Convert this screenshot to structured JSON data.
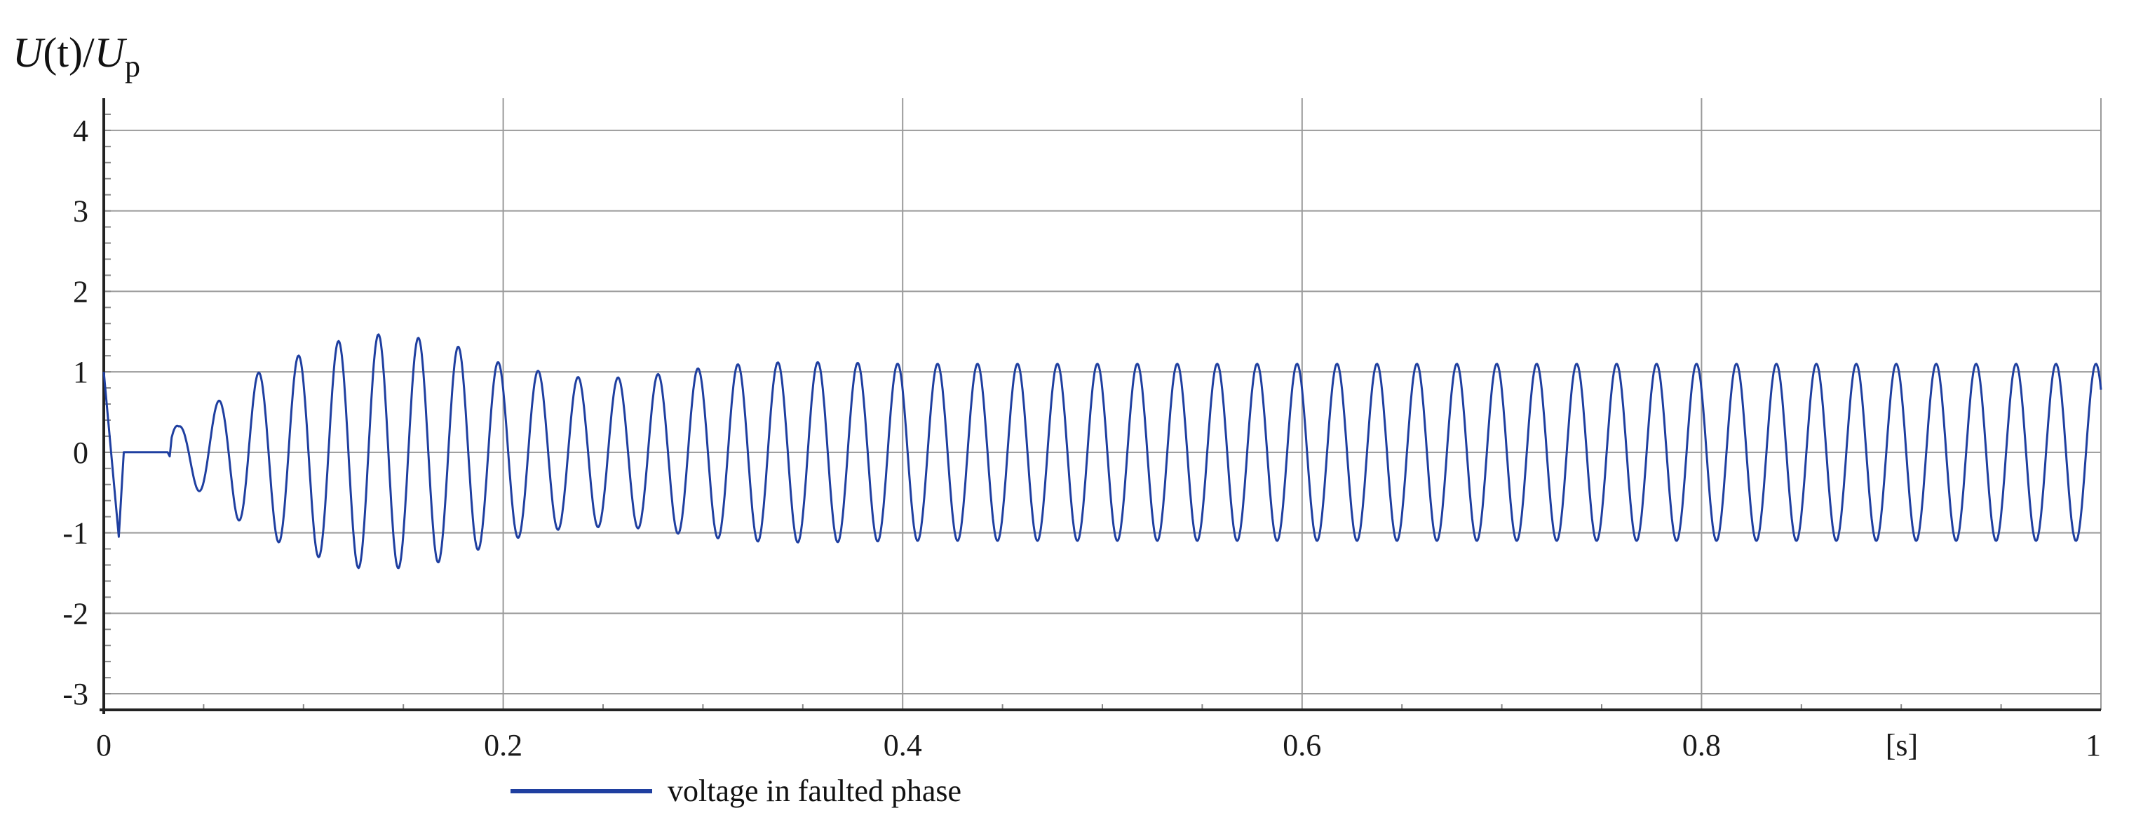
{
  "chart_data": {
    "type": "line",
    "ylabel": {
      "base": "U",
      "paren": "(t)/",
      "base2": "U",
      "sub": "p"
    },
    "xlabel_unit": "[s]",
    "xlim": [
      0,
      1
    ],
    "ylim": [
      -3.2,
      4.4
    ],
    "x_ticks": [
      0,
      0.2,
      0.4,
      0.6,
      0.8,
      1
    ],
    "x_tick_labels": [
      "0",
      "0.2",
      "0.4",
      "0.6",
      "0.8",
      "1"
    ],
    "y_ticks": [
      -3,
      -2,
      -1,
      0,
      1,
      2,
      3,
      4
    ],
    "y_tick_labels": [
      "-3",
      "-2",
      "-1",
      "0",
      "1",
      "2",
      "3",
      "4"
    ],
    "grid": true,
    "legend_position": "bottom-left",
    "series": [
      {
        "name": "voltage in faulted phase",
        "color": "#1f3fa0",
        "frequency_hz": 50,
        "envelope_peaks": [
          {
            "t": 0.0,
            "peak": 1.0
          },
          {
            "t": 0.0075,
            "peak": -1.05
          },
          {
            "t": 0.0375,
            "peak": 0.32
          },
          {
            "t": 0.0475,
            "peak": -0.48
          },
          {
            "t": 0.06,
            "peak": 0.68
          },
          {
            "t": 0.07,
            "peak": -0.9
          },
          {
            "t": 0.08,
            "peak": 1.02
          },
          {
            "t": 0.09,
            "peak": -1.15
          },
          {
            "t": 0.1,
            "peak": 1.22
          },
          {
            "t": 0.11,
            "peak": -1.33
          },
          {
            "t": 0.12,
            "peak": 1.4
          },
          {
            "t": 0.13,
            "peak": -1.45
          },
          {
            "t": 0.14,
            "peak": 1.47
          },
          {
            "t": 0.15,
            "peak": -1.43
          },
          {
            "t": 0.16,
            "peak": 1.42
          },
          {
            "t": 0.17,
            "peak": -1.35
          },
          {
            "t": 0.18,
            "peak": 1.3
          },
          {
            "t": 0.19,
            "peak": -1.18
          },
          {
            "t": 0.2,
            "peak": 1.1
          },
          {
            "t": 0.21,
            "peak": -1.05
          },
          {
            "t": 0.22,
            "peak": 1.0
          },
          {
            "t": 0.23,
            "peak": -0.95
          },
          {
            "t": 0.24,
            "peak": 0.93
          },
          {
            "t": 0.25,
            "peak": -0.93
          },
          {
            "t": 0.26,
            "peak": 0.93
          },
          {
            "t": 0.27,
            "peak": -0.95
          },
          {
            "t": 0.28,
            "peak": 0.98
          },
          {
            "t": 0.29,
            "peak": -1.02
          },
          {
            "t": 0.3,
            "peak": 1.05
          },
          {
            "t": 0.32,
            "peak": 1.1
          },
          {
            "t": 0.34,
            "peak": 1.12
          },
          {
            "t": 0.36,
            "peak": 1.12
          },
          {
            "t": 0.4,
            "peak": 1.1
          },
          {
            "t": 1.0,
            "peak": 1.1
          }
        ]
      }
    ]
  }
}
